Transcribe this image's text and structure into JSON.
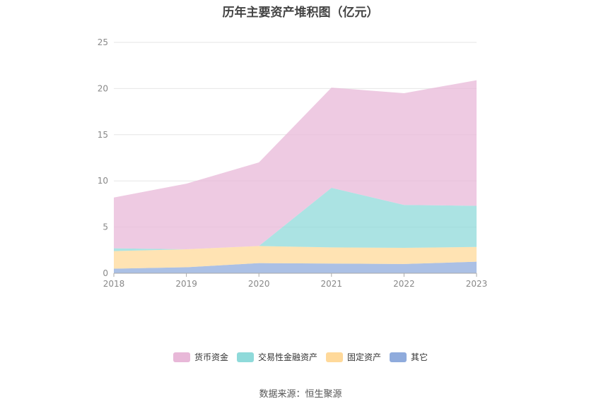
{
  "title": "历年主要资产堆积图（亿元）",
  "source": "数据来源：恒生聚源",
  "chart_data": {
    "type": "area",
    "stacked": true,
    "title": "历年主要资产堆积图（亿元）",
    "x": [
      "2018",
      "2019",
      "2020",
      "2021",
      "2022",
      "2023"
    ],
    "ylim": [
      0,
      25
    ],
    "yticks": [
      "0",
      "5",
      "10",
      "15",
      "20",
      "25"
    ],
    "grid": true,
    "legend_position": "bottom",
    "series": [
      {
        "name": "其它",
        "color": "#8fabdc",
        "values": [
          0.5,
          0.65,
          1.1,
          1.05,
          1.0,
          1.25
        ]
      },
      {
        "name": "固定资产",
        "color": "#ffd99a",
        "values": [
          1.9,
          1.95,
          1.85,
          1.75,
          1.75,
          1.6
        ]
      },
      {
        "name": "交易性金融资产",
        "color": "#8fdada",
        "values": [
          0.3,
          0.0,
          0.0,
          6.45,
          4.65,
          4.45
        ]
      },
      {
        "name": "货币资金",
        "color": "#e8b8d8",
        "values": [
          5.5,
          7.1,
          9.05,
          10.85,
          12.1,
          13.6
        ]
      }
    ],
    "legend_order": [
      "货币资金",
      "交易性金融资产",
      "固定资产",
      "其它"
    ]
  }
}
